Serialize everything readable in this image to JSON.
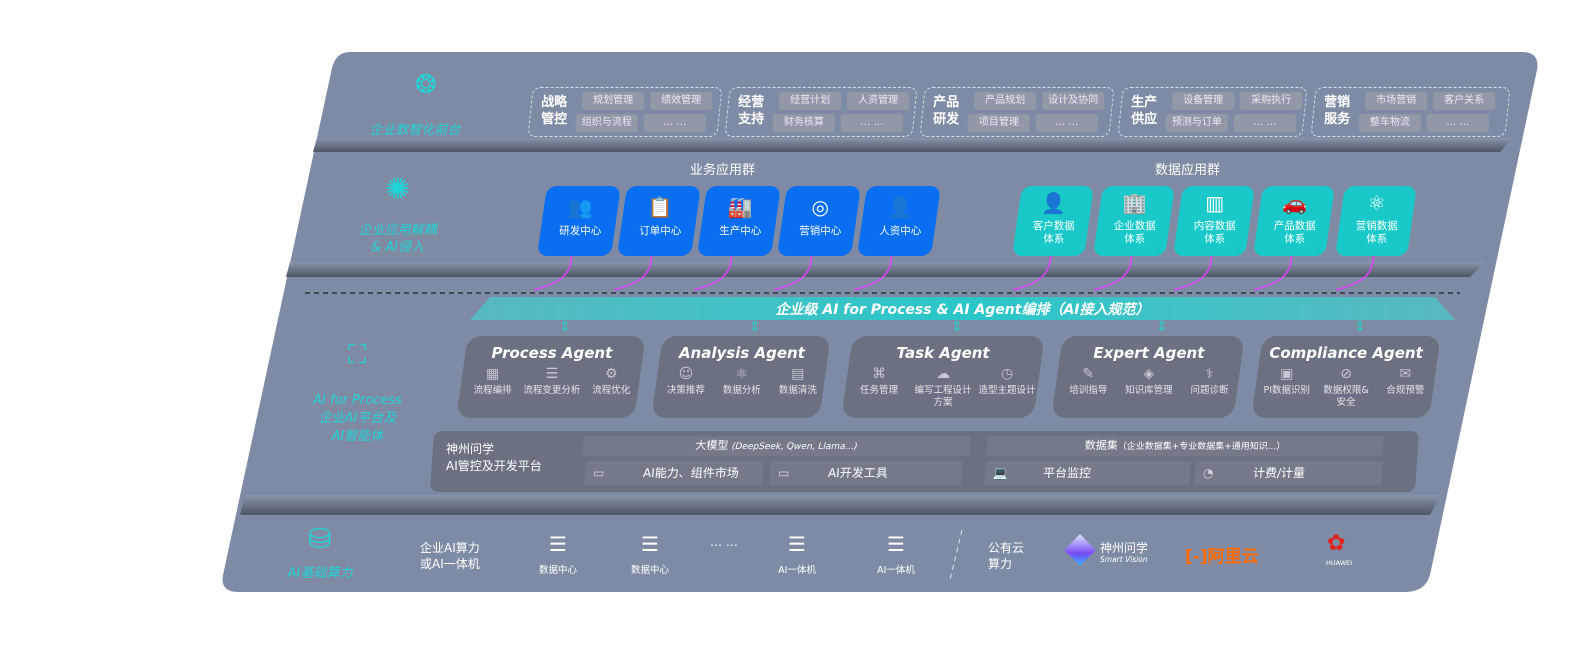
{
  "colors": {
    "panel": "#7f8ba4",
    "accent_teal": "#22d3d6",
    "business_blue": "#0a6ef0",
    "data_teal": "#19c9c9",
    "connector": "#e040fb",
    "aliyun": "#ff6a00",
    "huawei": "#e2231a"
  },
  "layer1": {
    "label": "企业数智化前台",
    "icon": "brain-icon",
    "groups": [
      {
        "title": "战略管控",
        "items": [
          "规划管理",
          "绩效管理",
          "组织与流程",
          "… …"
        ]
      },
      {
        "title": "经营支持",
        "items": [
          "经营计划",
          "人资管理",
          "财务核算",
          "… …"
        ]
      },
      {
        "title": "产品研发",
        "items": [
          "产品规划",
          "设计及协同",
          "项目管理",
          "… …"
        ]
      },
      {
        "title": "生产供应",
        "items": [
          "设备管理",
          "采购执行",
          "预测与订单",
          "… …"
        ]
      },
      {
        "title": "营销服务",
        "items": [
          "市场营销",
          "客户关系",
          "整车物流",
          "… …"
        ]
      }
    ]
  },
  "layer2": {
    "label": "企业应用解耦\n& AI侵入",
    "icon": "molecule-icon",
    "business_title": "业务应用群",
    "business": [
      {
        "label": "研发中心",
        "icon": "👥"
      },
      {
        "label": "订单中心",
        "icon": "📋"
      },
      {
        "label": "生产中心",
        "icon": "🏭"
      },
      {
        "label": "营销中心",
        "icon": "◎"
      },
      {
        "label": "人资中心",
        "icon": "👤"
      }
    ],
    "data_title": "数据应用群",
    "data": [
      {
        "label": "客户数据\n体系",
        "icon": "👤"
      },
      {
        "label": "企业数据\n体系",
        "icon": "🏢"
      },
      {
        "label": "内容数据\n体系",
        "icon": "▥"
      },
      {
        "label": "产品数据\n体系",
        "icon": "🚗"
      },
      {
        "label": "营销数据\n体系",
        "icon": "⚛"
      }
    ]
  },
  "layer3": {
    "label": "AI for Process\n企业AI平台及\nAI智能体",
    "icon": "face-scan-icon",
    "banner": "企业级 AI for Process & AI Agent编排（AI接入规范）",
    "agents": [
      {
        "title": "Process Agent",
        "items": [
          {
            "label": "流程编排",
            "icon": "▦"
          },
          {
            "label": "流程变更分析",
            "icon": "☰"
          },
          {
            "label": "流程优化",
            "icon": "⚙"
          }
        ]
      },
      {
        "title": "Analysis Agent",
        "items": [
          {
            "label": "决策推荐",
            "icon": "☺"
          },
          {
            "label": "数据分析",
            "icon": "⚛"
          },
          {
            "label": "数据清洗",
            "icon": "▤"
          }
        ]
      },
      {
        "title": "Task Agent",
        "items": [
          {
            "label": "任务管理",
            "icon": "⌘"
          },
          {
            "label": "编写工程设计方案",
            "icon": "☁"
          },
          {
            "label": "造型主题设计",
            "icon": "◷"
          }
        ]
      },
      {
        "title": "Expert Agent",
        "items": [
          {
            "label": "培训指导",
            "icon": "✎"
          },
          {
            "label": "知识库管理",
            "icon": "◈"
          },
          {
            "label": "问题诊断",
            "icon": "⚕"
          }
        ]
      },
      {
        "title": "Compliance Agent",
        "items": [
          {
            "label": "PI数据识别",
            "icon": "▣"
          },
          {
            "label": "数据权限&\n安全",
            "icon": "⊘"
          },
          {
            "label": "合规预警",
            "icon": "✉"
          }
        ]
      }
    ],
    "platform": {
      "name": "神州问学\nAI管控及开发平台",
      "llm": "大模型",
      "llm_note": "(DeepSeek, Qwen, Llama...)",
      "dataset": "数据集",
      "dataset_note": "（企业数据集+专业数据集+通用知识...）",
      "tools": [
        {
          "label": "AI能力、组件市场",
          "icon": "▭"
        },
        {
          "label": "AI开发工具",
          "icon": "▭"
        },
        {
          "label": "平台监控",
          "icon": "💻"
        },
        {
          "label": "计费/计量",
          "icon": "◔"
        }
      ]
    }
  },
  "layer4": {
    "label": "AI基础算力",
    "icon": "database-icon",
    "enterprise": "企业AI算力\n或AI一体机",
    "servers": [
      "数据中心",
      "数据中心",
      "AI一体机",
      "AI一体机"
    ],
    "ellipsis": "… …",
    "public": "公有云\n算力",
    "vendors": {
      "shenzhou": "神州问学",
      "shenzhou_sub": "Smart Vision",
      "aliyun": "阿里云",
      "huawei": "HUAWEI"
    }
  }
}
